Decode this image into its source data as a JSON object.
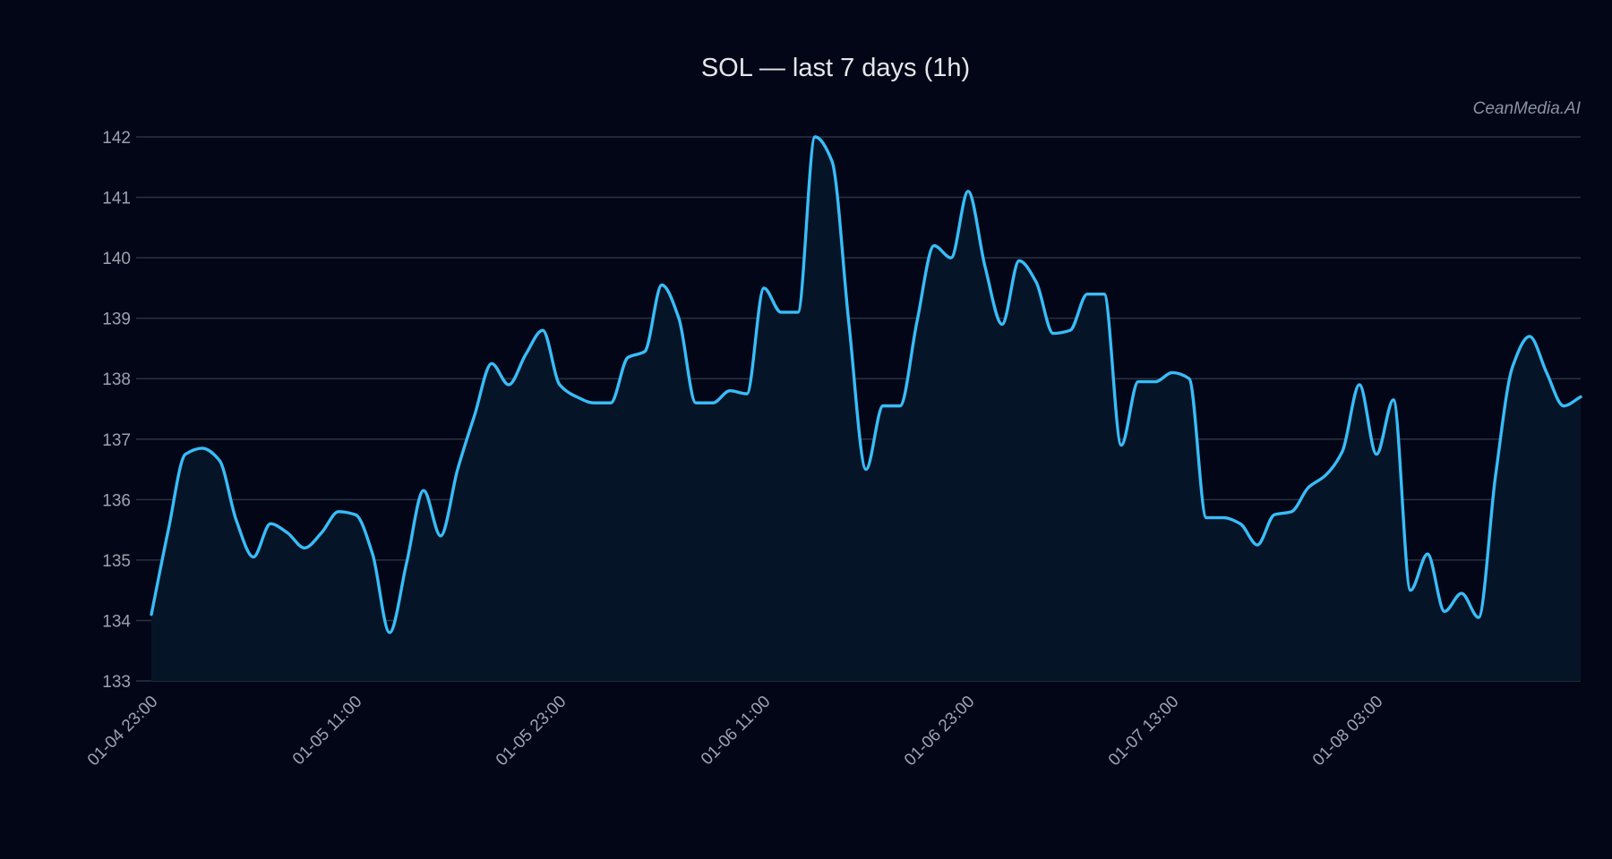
{
  "chart_data": {
    "type": "area",
    "title": "SOL — last 7 days (1h)",
    "watermark": "CeanMedia.AI",
    "xlabel": "",
    "ylabel": "",
    "ylim": [
      133,
      142
    ],
    "yticks": [
      133,
      134,
      135,
      136,
      137,
      138,
      139,
      140,
      141,
      142
    ],
    "xtick_labels": [
      {
        "index": 0,
        "label": "01-04 23:00"
      },
      {
        "index": 12,
        "label": "01-05 11:00"
      },
      {
        "index": 24,
        "label": "01-05 23:00"
      },
      {
        "index": 36,
        "label": "01-06 11:00"
      },
      {
        "index": 48,
        "label": "01-06 23:00"
      },
      {
        "index": 60,
        "label": "01-07 13:00"
      },
      {
        "index": 72,
        "label": "01-08 03:00"
      }
    ],
    "grid": true,
    "colors": {
      "line": "#38bdf8",
      "fill": "#061427",
      "grid": "#2a3342",
      "background": "#020617"
    },
    "values": [
      134.1,
      135.5,
      136.75,
      136.85,
      136.65,
      135.65,
      135.05,
      135.6,
      135.45,
      135.2,
      135.45,
      135.8,
      135.75,
      135.1,
      133.8,
      134.95,
      136.15,
      135.4,
      136.5,
      137.4,
      138.25,
      137.9,
      138.4,
      138.8,
      137.9,
      137.7,
      137.6,
      137.6,
      138.35,
      138.45,
      139.55,
      139.0,
      137.6,
      137.6,
      137.8,
      137.75,
      139.5,
      139.1,
      139.1,
      142.0,
      141.6,
      138.9,
      136.5,
      137.55,
      137.55,
      138.95,
      140.2,
      140.0,
      141.1,
      139.85,
      138.9,
      139.95,
      139.6,
      138.75,
      138.8,
      139.4,
      139.4,
      136.9,
      137.95,
      137.95,
      138.1,
      138.0,
      135.7,
      135.7,
      135.6,
      135.25,
      135.75,
      135.8,
      136.2,
      136.4,
      136.8,
      137.9,
      136.75,
      137.65,
      134.5,
      135.1,
      134.15,
      134.45,
      134.05,
      136.4,
      138.2,
      138.7,
      138.1,
      137.55,
      137.7
    ]
  }
}
